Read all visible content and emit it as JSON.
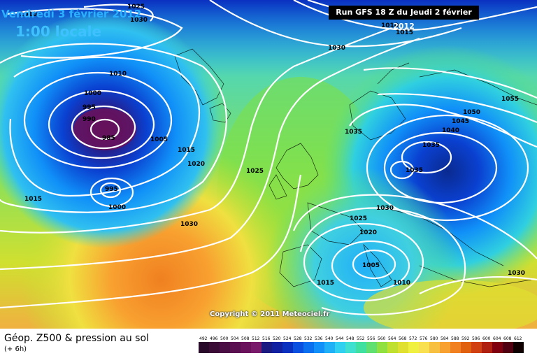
{
  "header": {
    "date": "Vendredi 3 février 2012",
    "local_time": "1:00 locale",
    "run_info": "Run GFS 18 Z du Jeudi 2 février 2012"
  },
  "footer": {
    "copyright": "Copyright © 2011 Meteociel.fr",
    "caption": "Géop. Z500 & pression au sol",
    "subcaption": "(+ 6h)"
  },
  "legend": {
    "values": [
      "492",
      "496",
      "500",
      "504",
      "508",
      "512",
      "516",
      "520",
      "524",
      "528",
      "532",
      "536",
      "540",
      "544",
      "548",
      "552",
      "556",
      "560",
      "564",
      "568",
      "572",
      "576",
      "580",
      "584",
      "588",
      "592",
      "596",
      "600",
      "604",
      "608",
      "612"
    ],
    "colors": [
      "#2a0a2a",
      "#3a0c36",
      "#4b0e44",
      "#5a1050",
      "#6a125c",
      "#7a1a6a",
      "#1a1a80",
      "#1020a0",
      "#0a30c0",
      "#0a50e0",
      "#0a70f0",
      "#1090f8",
      "#20b0f8",
      "#30d0f0",
      "#40e0d0",
      "#40e0a0",
      "#60e070",
      "#90e040",
      "#c0e030",
      "#e0e030",
      "#f0f040",
      "#f8e050",
      "#f8c040",
      "#f8a030",
      "#f08020",
      "#e06010",
      "#d04010",
      "#b02010",
      "#800010",
      "#500010",
      "#100000"
    ]
  },
  "isobars": [
    "1025",
    "1030",
    "1010",
    "1005",
    "1015",
    "1020",
    "1010",
    "1000",
    "995",
    "990",
    "985",
    "1005",
    "1015",
    "1020",
    "1025",
    "1015",
    "995",
    "1000",
    "1030",
    "1030",
    "1020",
    "1030",
    "1025",
    "1020",
    "1005",
    "1015",
    "1010",
    "1035",
    "1035",
    "1040",
    "1045",
    "1050",
    "1055",
    "1035",
    "1030"
  ],
  "colors": {
    "isobar": "#ffffff",
    "date_text": "#2ab0ff",
    "run_box": "#000000"
  }
}
